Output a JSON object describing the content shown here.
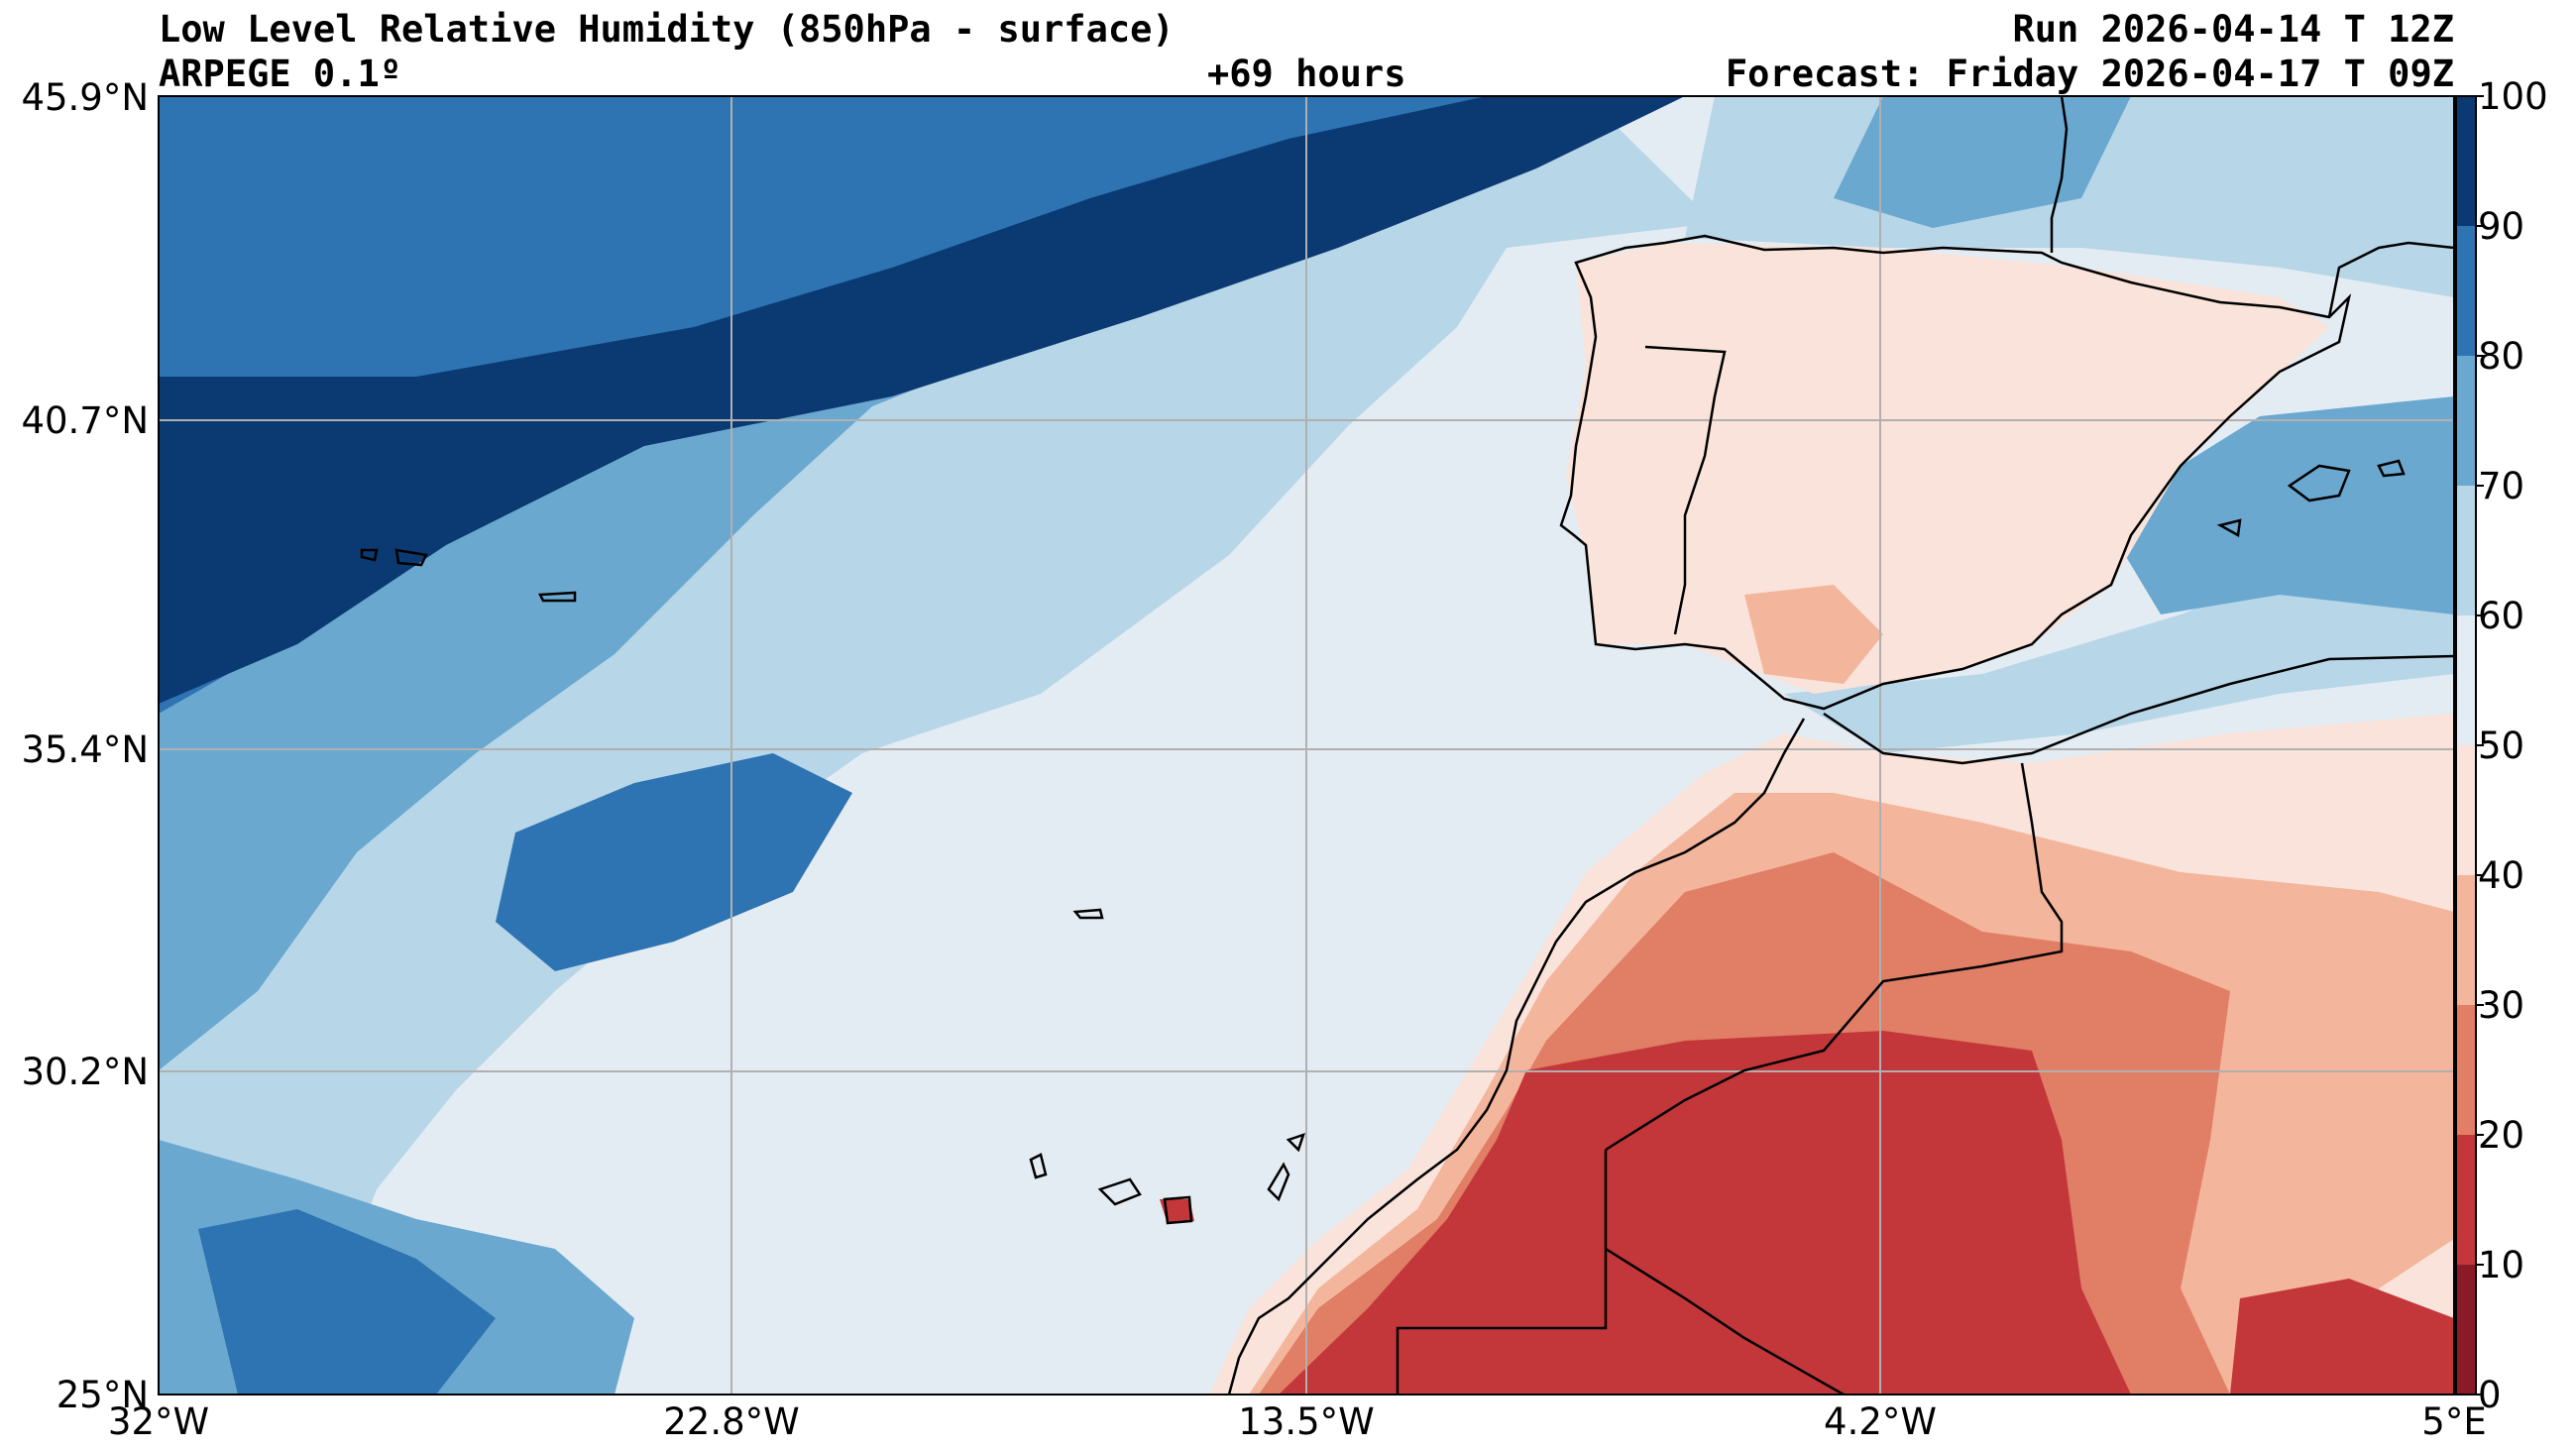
{
  "header": {
    "title": "Low Level Relative Humidity (850hPa - surface)",
    "model": "ARPEGE 0.1º",
    "lead_time": "+69 hours",
    "run": "Run 2026-04-14 T 12Z",
    "forecast": "Forecast: Friday 2026-04-17 T 09Z"
  },
  "axes": {
    "latitudes": [
      "45.9°N",
      "40.7°N",
      "35.4°N",
      "30.2°N",
      "25°N"
    ],
    "longitudes": [
      "32°W",
      "22.8°W",
      "13.5°W",
      "4.2°W",
      "5°E"
    ]
  },
  "colorbar": {
    "labels": [
      "100",
      "90",
      "80",
      "70",
      "60",
      "50",
      "40",
      "30",
      "20",
      "10",
      "0"
    ],
    "colors": [
      "#0b3a73",
      "#2e73b2",
      "#6aa8d0",
      "#b7d6e8",
      "#e4ecf3",
      "#f9e3da",
      "#f3b59b",
      "#e07e66",
      "#c3373a",
      "#8b1a28"
    ]
  },
  "map": {
    "region": "Iberia, Morocco and the Canary Islands",
    "colors": {
      "ocean_base": "#e4ecf3",
      "very_moist": "#0b3a73",
      "moist": "#2e73b2",
      "mid_moist": "#6aa8d0",
      "light_moist": "#b7d6e8",
      "light_dry": "#f9e3da",
      "dry": "#f3b59b",
      "drier": "#e07e66",
      "very_dry": "#c3373a",
      "coastline": "#000000",
      "gridline": "#b0b0b0"
    }
  }
}
